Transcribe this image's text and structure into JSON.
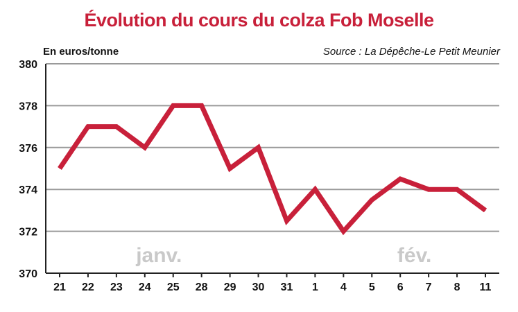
{
  "chart_data": {
    "type": "line",
    "title": "Évolution du cours du colza Fob Moselle",
    "ylabel": "En euros/tonne",
    "source": "Source : La Dépêche-Le Petit Meunier",
    "categories": [
      "21",
      "22",
      "23",
      "24",
      "25",
      "28",
      "29",
      "30",
      "31",
      "1",
      "4",
      "5",
      "6",
      "7",
      "8",
      "11"
    ],
    "series": [
      {
        "values": [
          375,
          377,
          377,
          376,
          378,
          378,
          375,
          376,
          372.5,
          374,
          372,
          373.5,
          374.5,
          374,
          374,
          373
        ]
      }
    ],
    "ylim": [
      370,
      380
    ],
    "yticks": [
      "370",
      "372",
      "374",
      "376",
      "378",
      "380"
    ],
    "months": [
      {
        "label": "janv.",
        "category_index": 3.5
      },
      {
        "label": "fév.",
        "category_index": 12.5
      }
    ],
    "grid": true,
    "line_color": "#c8203a",
    "grid_color": "#9a9a9a"
  }
}
